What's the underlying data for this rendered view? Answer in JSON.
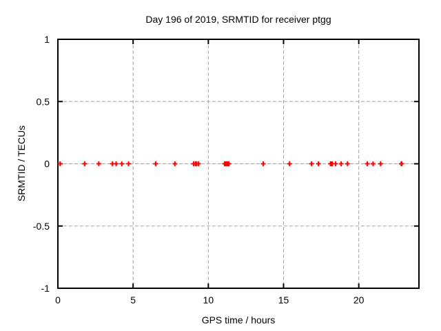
{
  "chart_data": {
    "type": "scatter",
    "title": "Day 196 of 2019, SRMTID for receiver ptgg",
    "xlabel": "GPS time / hours",
    "ylabel": "SRMTID / TECUs",
    "xlim": [
      0,
      24
    ],
    "ylim": [
      -1,
      1
    ],
    "xticks": [
      0,
      5,
      10,
      15,
      20
    ],
    "xtick_labels": [
      "0",
      "5",
      "10",
      "15",
      "20"
    ],
    "yticks": [
      -1,
      -0.5,
      0,
      0.5,
      1
    ],
    "ytick_labels": [
      "-1",
      "-0.5",
      "0",
      "0.5",
      "1"
    ],
    "grid": true,
    "legend": "none",
    "marker": "plus",
    "marker_color": "#ff0000",
    "grid_color": "#a0a0a0",
    "axis_color": "#000000",
    "background_color": "#ffffff",
    "series": [
      {
        "name": "SRMTID",
        "x": [
          0.15,
          1.78,
          2.72,
          3.63,
          3.87,
          4.25,
          4.7,
          6.5,
          7.78,
          9.02,
          9.14,
          9.22,
          9.34,
          11.08,
          11.15,
          11.22,
          11.29,
          11.36,
          13.65,
          15.4,
          16.86,
          17.32,
          18.12,
          18.16,
          18.2,
          18.24,
          18.46,
          18.83,
          19.25,
          20.57,
          20.95,
          21.45,
          22.82,
          22.86
        ],
        "y": [
          0,
          0,
          0,
          0,
          0,
          0,
          0,
          0,
          0,
          0,
          0,
          0,
          0,
          0,
          0,
          0,
          0,
          0,
          0,
          0,
          0,
          0,
          0,
          0,
          0,
          0,
          0,
          0,
          0,
          0,
          0,
          0,
          0,
          0
        ]
      }
    ]
  }
}
